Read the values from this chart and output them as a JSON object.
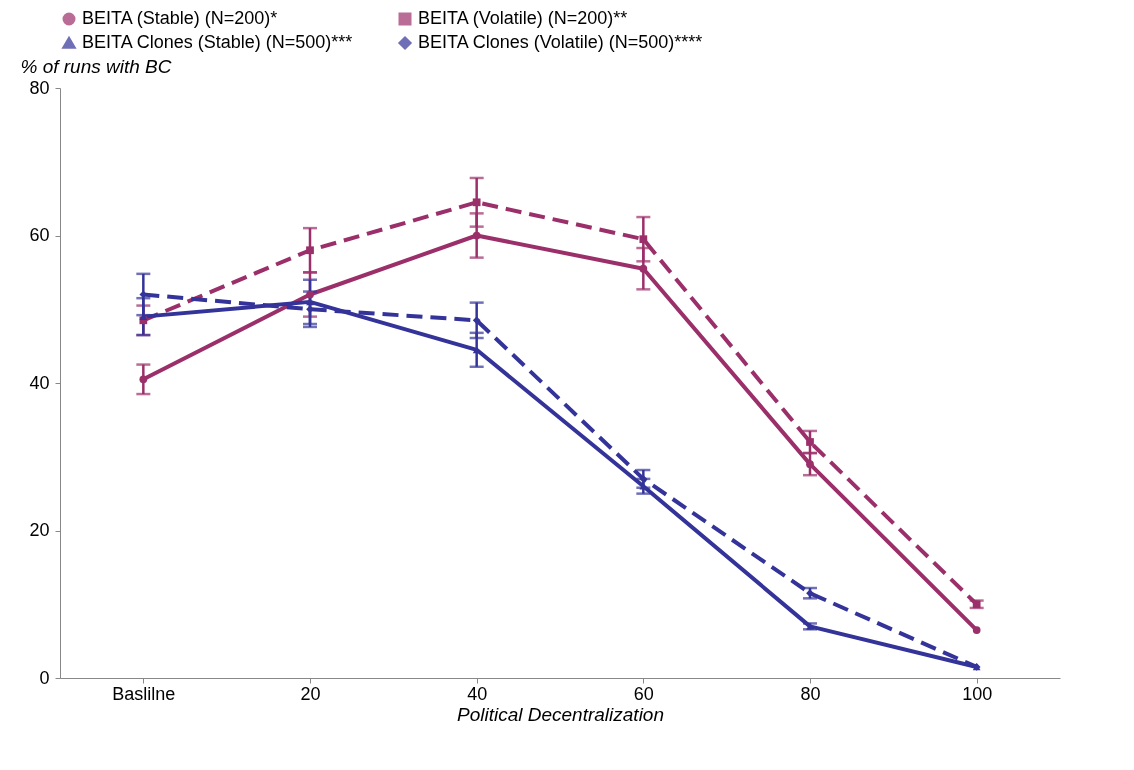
{
  "chart_data": {
    "type": "line",
    "xlabel": "Political Decentralization",
    "ylabel": "% of runs with BC",
    "categories": [
      "Baslilne",
      "20",
      "40",
      "60",
      "80",
      "100"
    ],
    "ylim": [
      0,
      80
    ],
    "yticks": [
      0,
      20,
      40,
      60,
      80
    ],
    "grid": false,
    "legend": "top",
    "series": [
      {
        "name": "BEITA (Stable) (N=200)*",
        "color": "#9b2f6a",
        "marker": "circle",
        "line_style": "solid",
        "values": [
          40.5,
          52,
          60,
          55.5,
          29,
          6.5
        ],
        "errors": [
          2,
          3,
          3,
          2.8,
          1.5,
          null
        ]
      },
      {
        "name": "BEITA (Volatile) (N=200)**",
        "color": "#9b2f6a",
        "marker": "square",
        "line_style": "dashed",
        "values": [
          48.5,
          58,
          64.5,
          59.5,
          32,
          10
        ],
        "errors": [
          2,
          3,
          3.3,
          3,
          1.5,
          0.5
        ]
      },
      {
        "name": "BEITA Clones (Stable) (N=500)***",
        "color": "#333399",
        "marker": "triangle",
        "line_style": "solid",
        "values": [
          49,
          51,
          44.5,
          26,
          7,
          1.5
        ],
        "errors": [
          2.5,
          3,
          2.3,
          1,
          0.4,
          null
        ]
      },
      {
        "name": "BEITA Clones (Volatile) (N=500)****",
        "color": "#333399",
        "marker": "diamond",
        "line_style": "dashed",
        "values": [
          52,
          50,
          48.5,
          27,
          11.5,
          1.5
        ],
        "errors": [
          2.8,
          2.4,
          2.4,
          1.2,
          0.7,
          null
        ]
      }
    ]
  }
}
